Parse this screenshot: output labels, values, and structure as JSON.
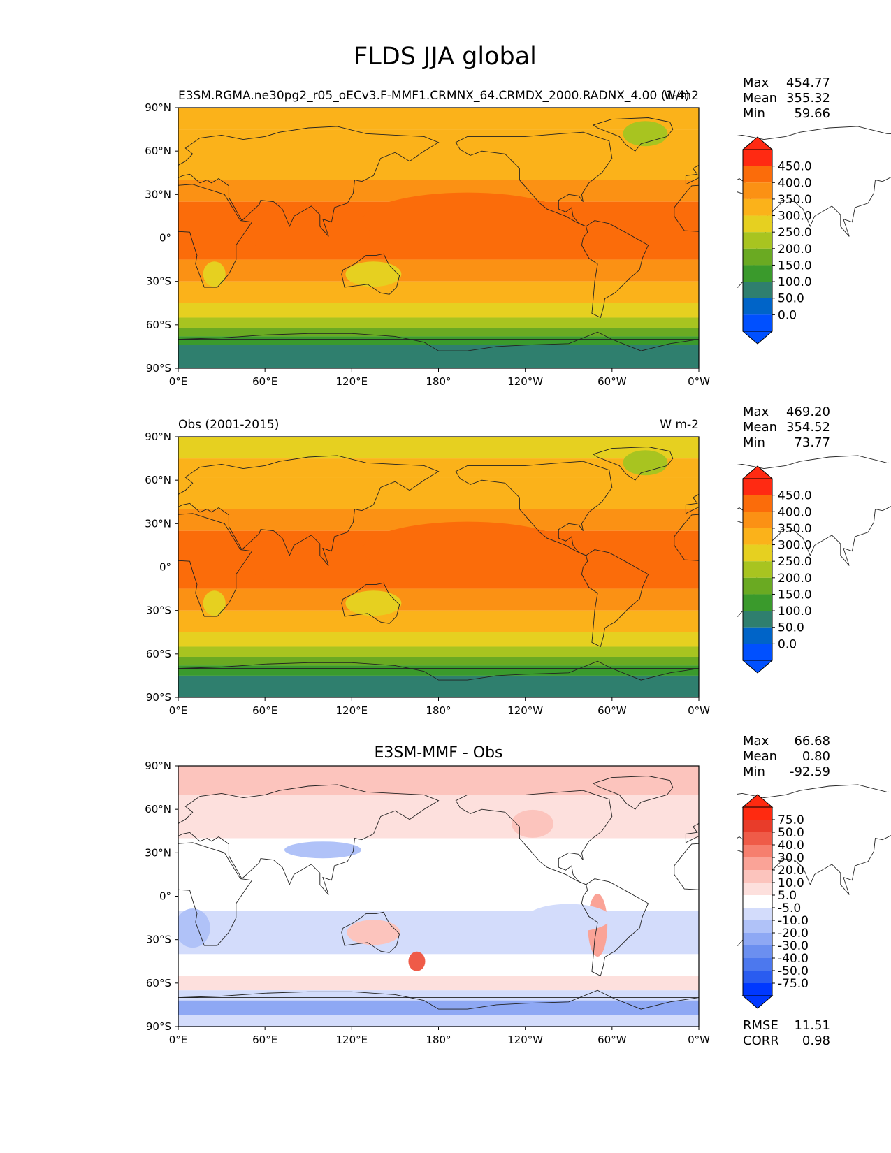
{
  "figure": {
    "title": "FLDS JJA global"
  },
  "axes": {
    "lat_ticks": [
      "90°N",
      "60°N",
      "30°N",
      "0°",
      "30°S",
      "60°S",
      "90°S"
    ],
    "lon_ticks": [
      "0°E",
      "60°E",
      "120°E",
      "180°",
      "120°W",
      "60°W",
      "0°W"
    ]
  },
  "panels": [
    {
      "left_title": "E3SM.RGMA.ne30pg2_r05_oECv3.F-MMF1.CRMNX_64.CRMDX_2000.RADNX_4.00 (1-4)",
      "right_title": "W/m2",
      "center_title": "",
      "stats": {
        "max_label": "Max",
        "max": "454.77",
        "mean_label": "Mean",
        "mean": "355.32",
        "min_label": "Min",
        "min": "59.66"
      },
      "colorbar_labels": [
        "450.0",
        "400.0",
        "350.0",
        "300.0",
        "250.0",
        "200.0",
        "150.0",
        "100.0",
        "50.0",
        "0.0"
      ],
      "palette": "absolute"
    },
    {
      "left_title": "Obs (2001-2015)",
      "right_title": "W m-2",
      "center_title": "",
      "stats": {
        "max_label": "Max",
        "max": "469.20",
        "mean_label": "Mean",
        "mean": "354.52",
        "min_label": "Min",
        "min": "73.77"
      },
      "colorbar_labels": [
        "450.0",
        "400.0",
        "350.0",
        "300.0",
        "250.0",
        "200.0",
        "150.0",
        "100.0",
        "50.0",
        "0.0"
      ],
      "palette": "absolute"
    },
    {
      "left_title": "",
      "right_title": "",
      "center_title": "E3SM-MMF - Obs",
      "stats": {
        "max_label": "Max",
        "max": "66.68",
        "mean_label": "Mean",
        "mean": "0.80",
        "min_label": "Min",
        "min": "-92.59"
      },
      "colorbar_labels": [
        "75.0",
        "50.0",
        "40.0",
        "30.0",
        "20.0",
        "10.0",
        "5.0",
        "-5.0",
        "-10.0",
        "-20.0",
        "-30.0",
        "-40.0",
        "-50.0",
        "-75.0"
      ],
      "palette": "diff",
      "extra_stats": [
        {
          "label": "RMSE",
          "value": "11.51"
        },
        {
          "label": "CORR",
          "value": "0.98"
        }
      ]
    }
  ],
  "palettes": {
    "absolute": [
      "#0050ff",
      "#0064c8",
      "#2f7f6e",
      "#3a9a2c",
      "#6aaa22",
      "#a8c420",
      "#e6d020",
      "#fbb21a",
      "#fb9114",
      "#fb6c0a",
      "#ff2a12"
    ],
    "diff": [
      "#0038ff",
      "#2a5cf0",
      "#4c78ee",
      "#6b8ff0",
      "#8ea8f4",
      "#b0c2f8",
      "#d3dcfb",
      "#ffffff",
      "#fde0dd",
      "#fcc4bd",
      "#faa397",
      "#f67f6e",
      "#ef5b48",
      "#e83c2a",
      "#ff2a10"
    ]
  }
}
